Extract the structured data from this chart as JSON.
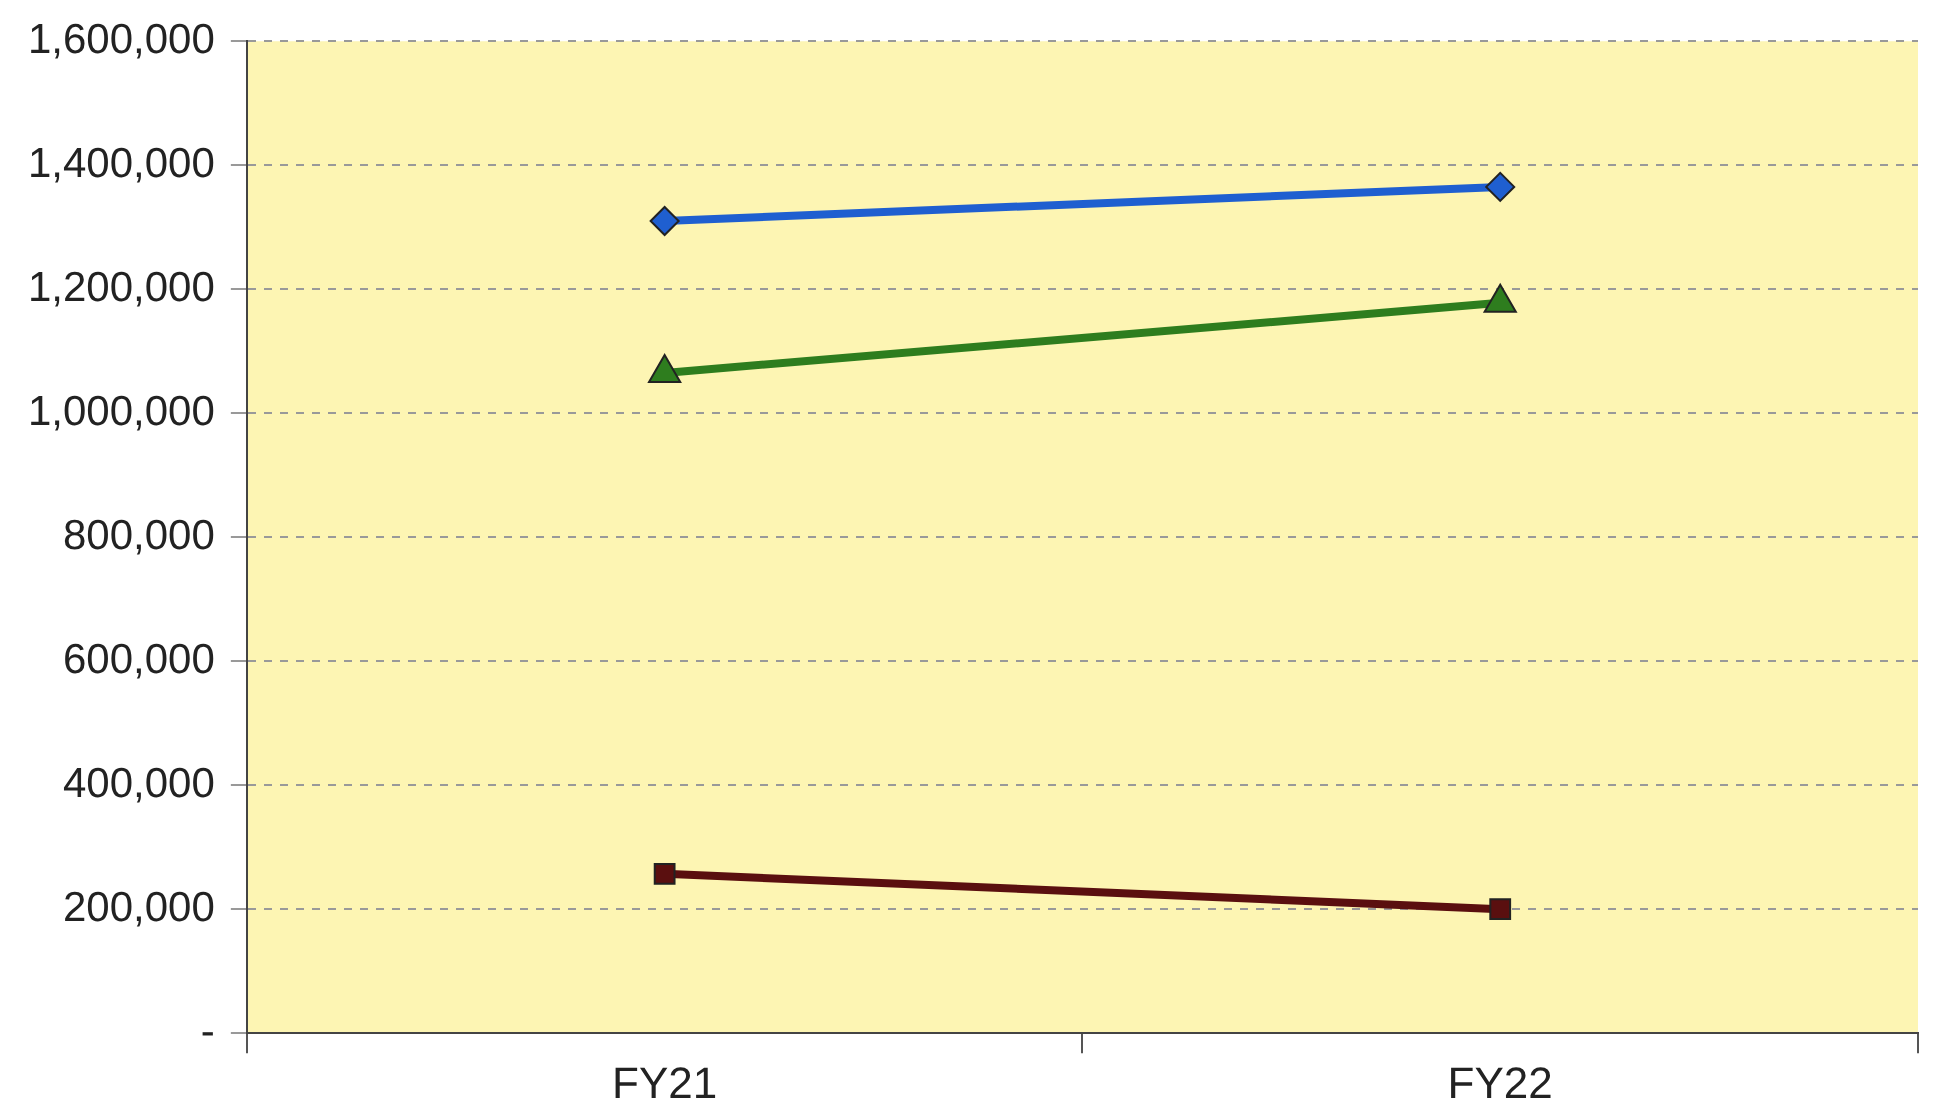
{
  "chart_data": {
    "type": "line",
    "categories": [
      "FY21",
      "FY22"
    ],
    "series": [
      {
        "color": "#1f5fd0",
        "values": [
          1310000,
          1365000
        ],
        "marker": "diamond"
      },
      {
        "color": "#2e7d1e",
        "values": [
          1065000,
          1178000
        ],
        "marker": "triangle"
      },
      {
        "color": "#5a0f0f",
        "values": [
          257000,
          200000
        ],
        "marker": "square"
      }
    ],
    "ylim": [
      0,
      1600000
    ],
    "yticks": [
      {
        "value": 0,
        "label": "-"
      },
      {
        "value": 200000,
        "label": "200,000"
      },
      {
        "value": 400000,
        "label": "400,000"
      },
      {
        "value": 600000,
        "label": "600,000"
      },
      {
        "value": 800000,
        "label": "800,000"
      },
      {
        "value": 1000000,
        "label": "1,000,000"
      },
      {
        "value": 1200000,
        "label": "1,200,000"
      },
      {
        "value": 1400000,
        "label": "1,400,000"
      },
      {
        "value": 1600000,
        "label": "1,600,000"
      }
    ],
    "grid": "y",
    "legend": false,
    "line_style": "solid"
  }
}
